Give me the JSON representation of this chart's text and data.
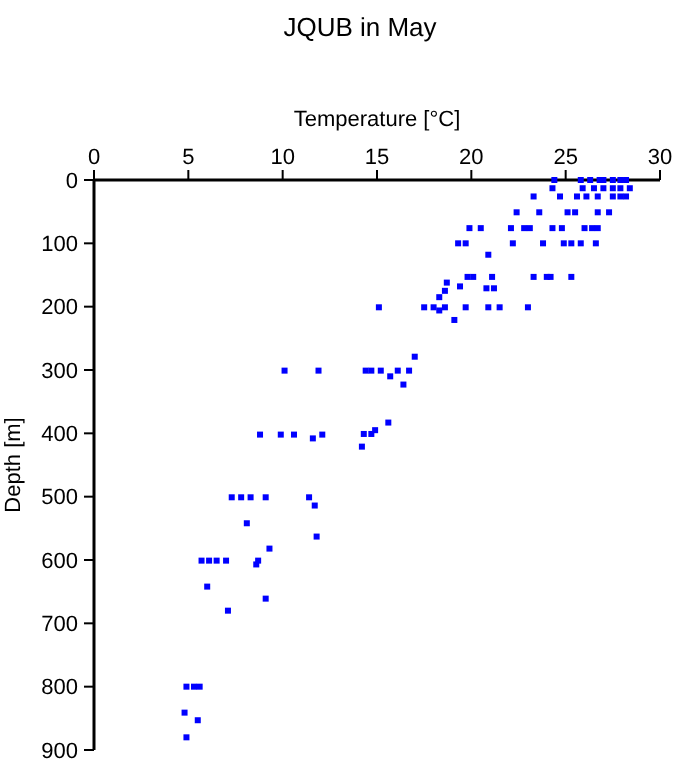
{
  "chart_data": {
    "type": "scatter",
    "title": "JQUB in May",
    "xlabel": "Temperature [°C]",
    "ylabel": "Depth [m]",
    "xlim": [
      0,
      30
    ],
    "xticks": [
      0,
      5,
      10,
      15,
      20,
      25,
      30
    ],
    "ylim": [
      900,
      0
    ],
    "yticks": [
      0,
      100,
      200,
      300,
      400,
      500,
      600,
      700,
      800,
      900
    ],
    "grid": false,
    "marker": "square",
    "series": [
      {
        "color": "#0000ff",
        "x": [
          24.4,
          25.8,
          26.3,
          26.8,
          27.0,
          27.5,
          27.9,
          28.2,
          24.3,
          25.9,
          26.5,
          27.0,
          27.5,
          27.9,
          28.4,
          23.3,
          24.7,
          25.6,
          26.1,
          26.7,
          27.5,
          27.9,
          28.2,
          22.4,
          23.6,
          25.1,
          25.5,
          26.7,
          27.3,
          19.9,
          20.5,
          22.1,
          22.8,
          23.1,
          24.3,
          24.8,
          26.0,
          26.4,
          26.7,
          19.3,
          19.7,
          22.2,
          23.8,
          24.9,
          25.3,
          25.8,
          26.6,
          20.9,
          19.8,
          20.1,
          21.1,
          23.3,
          24.0,
          24.2,
          25.3,
          18.7,
          19.4,
          20.8,
          21.2,
          18.6,
          18.3,
          15.1,
          17.5,
          18.0,
          18.6,
          19.7,
          20.9,
          21.5,
          23.0,
          18.3,
          19.1,
          17.0,
          14.4,
          14.7,
          15.2,
          16.1,
          16.7,
          10.1,
          11.9,
          15.7,
          16.4,
          15.6,
          14.9,
          14.3,
          14.7,
          14.2,
          8.8,
          9.9,
          10.6,
          12.1,
          11.6,
          7.3,
          7.8,
          8.3,
          9.1,
          11.4,
          11.7,
          8.1,
          11.8,
          9.3,
          5.7,
          6.1,
          6.5,
          7.0,
          8.7,
          8.6,
          6.0,
          9.1,
          7.1,
          4.9,
          5.3,
          5.6,
          4.8,
          5.5,
          4.9
        ],
        "values": [
          0,
          0,
          0,
          0,
          0,
          0,
          0,
          0,
          13,
          13,
          13,
          13,
          13,
          13,
          13,
          26,
          26,
          26,
          26,
          26,
          26,
          26,
          26,
          51,
          51,
          51,
          51,
          51,
          51,
          76,
          76,
          76,
          76,
          76,
          76,
          76,
          76,
          76,
          76,
          100,
          100,
          100,
          100,
          100,
          100,
          100,
          100,
          118,
          153,
          153,
          153,
          153,
          153,
          153,
          153,
          162,
          168,
          171,
          171,
          175,
          185,
          201,
          201,
          201,
          201,
          201,
          201,
          201,
          201,
          206,
          221,
          279,
          301,
          301,
          301,
          301,
          301,
          301,
          301,
          310,
          323,
          383,
          395,
          401,
          401,
          421,
          402,
          402,
          402,
          402,
          408,
          501,
          501,
          501,
          501,
          501,
          514,
          542,
          563,
          582,
          601,
          601,
          601,
          601,
          601,
          607,
          642,
          661,
          680,
          800,
          800,
          800,
          841,
          853,
          880
        ]
      }
    ]
  }
}
